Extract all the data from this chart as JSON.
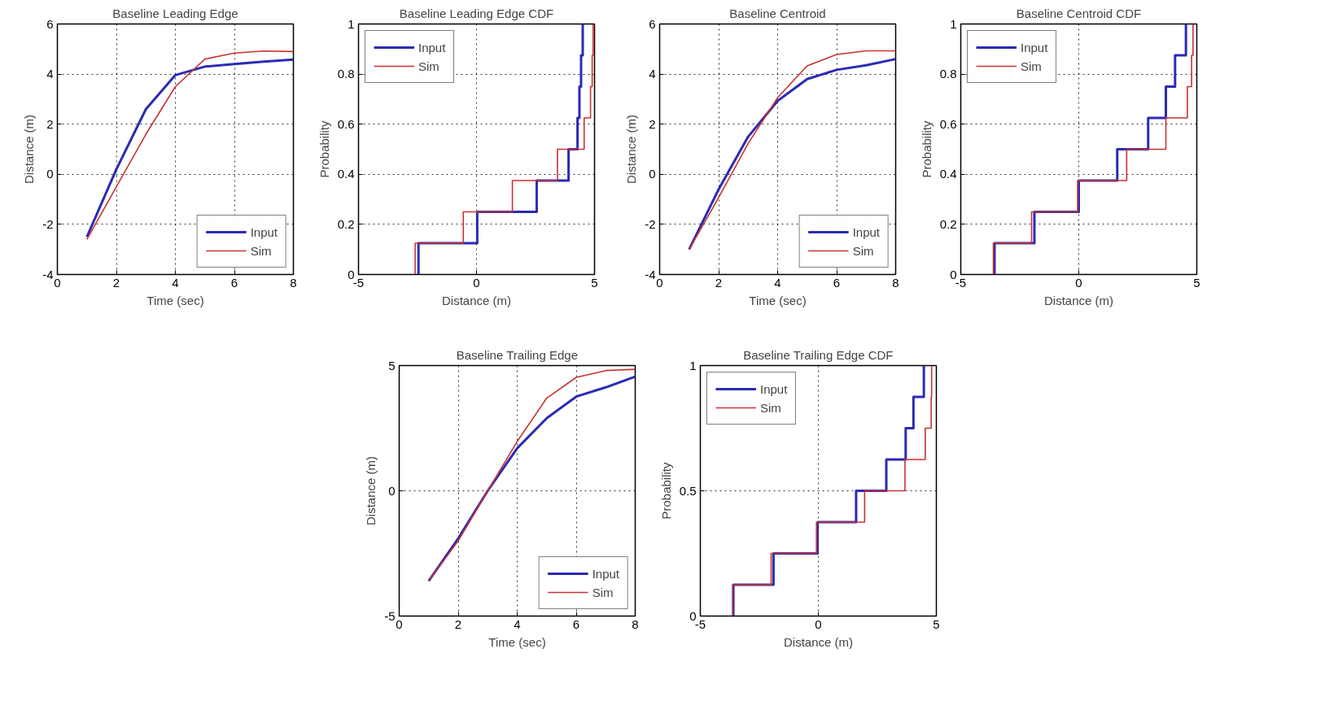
{
  "chart_data": [
    {
      "type": "line",
      "title": "Baseline Leading Edge",
      "xlabel": "Time (sec)",
      "ylabel": "Distance (m)",
      "xlim": [
        0,
        8
      ],
      "ylim": [
        -4,
        6
      ],
      "xticks": [
        0,
        2,
        4,
        6,
        8
      ],
      "yticks": [
        -4,
        -2,
        0,
        2,
        4,
        6
      ],
      "grid": true,
      "legend": "bottom right",
      "x": [
        1,
        2,
        3,
        4,
        5,
        6,
        7,
        8
      ],
      "series": [
        {
          "name": "Input",
          "color": "#2b2bb3",
          "values": [
            -2.5,
            0.2,
            2.6,
            3.96,
            4.3,
            4.4,
            4.5,
            4.58
          ]
        },
        {
          "name": "Sim",
          "color": "#c83232",
          "values": [
            -2.6,
            -0.5,
            1.6,
            3.5,
            4.6,
            4.84,
            4.92,
            4.9
          ]
        }
      ]
    },
    {
      "type": "step",
      "title": "Baseline Leading Edge CDF",
      "xlabel": "Distance (m)",
      "ylabel": "Probability",
      "xlim": [
        -5,
        5
      ],
      "ylim": [
        0,
        1
      ],
      "xticks": [
        -5,
        0,
        5
      ],
      "yticks": [
        0,
        0.2,
        0.4,
        0.6,
        0.8,
        1
      ],
      "grid": true,
      "legend": "top left",
      "series": [
        {
          "name": "Input",
          "color": "#2b2bb3",
          "x": [
            -2.46,
            -2.46,
            0.03,
            2.55,
            3.9,
            4.28,
            4.36,
            4.43,
            4.5
          ],
          "values": [
            0,
            0.125,
            0.25,
            0.375,
            0.5,
            0.625,
            0.75,
            0.875,
            1
          ]
        },
        {
          "name": "Sim",
          "color": "#c83232",
          "x": [
            -2.6,
            -2.6,
            -0.56,
            1.52,
            3.43,
            4.56,
            4.83,
            4.9,
            4.94
          ],
          "values": [
            0,
            0.125,
            0.25,
            0.375,
            0.5,
            0.625,
            0.75,
            0.875,
            1
          ]
        }
      ]
    },
    {
      "type": "line",
      "title": "Baseline Centroid",
      "xlabel": "Time (sec)",
      "ylabel": "Distance (m)",
      "xlim": [
        0,
        8
      ],
      "ylim": [
        -4,
        6
      ],
      "xticks": [
        0,
        2,
        4,
        6,
        8
      ],
      "yticks": [
        -4,
        -2,
        0,
        2,
        4,
        6
      ],
      "grid": true,
      "legend": "bottom right",
      "x": [
        1,
        2,
        3,
        4,
        5,
        6,
        7,
        8
      ],
      "series": [
        {
          "name": "Input",
          "color": "#2b2bb3",
          "values": [
            -3.0,
            -0.6,
            1.5,
            2.93,
            3.8,
            4.17,
            4.35,
            4.6
          ]
        },
        {
          "name": "Sim",
          "color": "#c83232",
          "values": [
            -3.0,
            -0.93,
            1.23,
            3.06,
            4.33,
            4.78,
            4.93,
            4.93
          ]
        }
      ]
    },
    {
      "type": "step",
      "title": "Baseline Centroid CDF",
      "xlabel": "Distance (m)",
      "ylabel": "Probability",
      "xlim": [
        -5,
        5
      ],
      "ylim": [
        0,
        1
      ],
      "xticks": [
        -5,
        0,
        5
      ],
      "yticks": [
        0,
        0.2,
        0.4,
        0.6,
        0.8,
        1
      ],
      "grid": true,
      "legend": "top left",
      "series": [
        {
          "name": "Input",
          "color": "#2b2bb3",
          "x": [
            -3.57,
            -3.57,
            -1.88,
            0.0,
            1.63,
            2.94,
            3.69,
            4.08,
            4.54
          ],
          "values": [
            0,
            0.125,
            0.25,
            0.375,
            0.5,
            0.625,
            0.75,
            0.875,
            1
          ]
        },
        {
          "name": "Sim",
          "color": "#c83232",
          "x": [
            -3.62,
            -3.62,
            -2.0,
            -0.05,
            2.03,
            3.69,
            4.6,
            4.78,
            4.84
          ],
          "values": [
            0,
            0.125,
            0.25,
            0.375,
            0.5,
            0.625,
            0.75,
            0.875,
            1
          ]
        }
      ]
    },
    {
      "type": "line",
      "title": "Baseline Trailing Edge",
      "xlabel": "Time (sec)",
      "ylabel": "Distance (m)",
      "xlim": [
        0,
        8
      ],
      "ylim": [
        -5,
        5
      ],
      "xticks": [
        0,
        2,
        4,
        6,
        8
      ],
      "yticks": [
        -5,
        0,
        5
      ],
      "grid": true,
      "legend": "bottom right",
      "x": [
        1,
        2,
        3,
        4,
        5,
        6,
        7,
        8
      ],
      "series": [
        {
          "name": "Input",
          "color": "#2b2bb3",
          "values": [
            -3.6,
            -1.9,
            0.0,
            1.7,
            2.9,
            3.76,
            4.13,
            4.56
          ]
        },
        {
          "name": "Sim",
          "color": "#c83232",
          "values": [
            -3.6,
            -2.0,
            0.0,
            1.97,
            3.7,
            4.53,
            4.8,
            4.85
          ]
        }
      ]
    },
    {
      "type": "step",
      "title": "Baseline Trailing Edge CDF",
      "xlabel": "Distance (m)",
      "ylabel": "Probability",
      "xlim": [
        -5,
        5
      ],
      "ylim": [
        0,
        1
      ],
      "xticks": [
        -5,
        0,
        5
      ],
      "yticks": [
        0,
        0.5,
        1
      ],
      "grid": true,
      "legend": "top left",
      "series": [
        {
          "name": "Input",
          "color": "#2b2bb3",
          "x": [
            -3.6,
            -3.6,
            -1.9,
            -0.03,
            1.6,
            2.88,
            3.7,
            4.03,
            4.47
          ],
          "values": [
            0,
            0.125,
            0.25,
            0.375,
            0.5,
            0.625,
            0.75,
            0.875,
            1
          ]
        },
        {
          "name": "Sim",
          "color": "#c83232",
          "x": [
            -3.63,
            -3.63,
            -2.0,
            -0.08,
            1.96,
            3.67,
            4.53,
            4.78,
            4.8
          ],
          "values": [
            0,
            0.125,
            0.25,
            0.375,
            0.5,
            0.625,
            0.75,
            0.875,
            1
          ]
        }
      ]
    }
  ]
}
